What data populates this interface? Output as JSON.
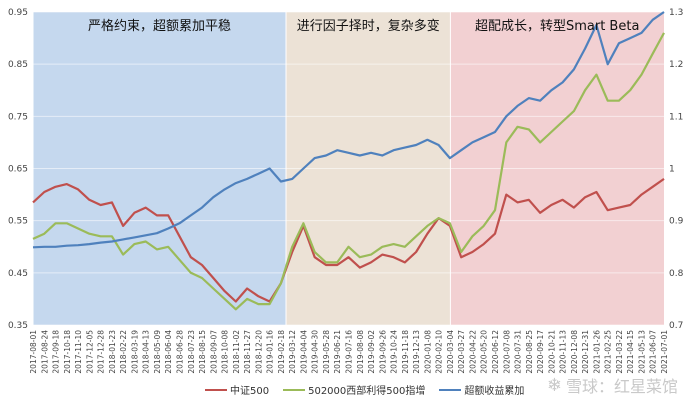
{
  "chart_data": {
    "type": "line",
    "regions": [
      {
        "label": "严格约束，超额累加平稳",
        "from": "2017-08-01",
        "to": "2019-02-28",
        "color": "#c5d8ee"
      },
      {
        "label": "进行因子择时，复杂多变",
        "from": "2019-02-28",
        "to": "2020-03-05",
        "color": "#ece2d6"
      },
      {
        "label": "超配成长，转型Smart Beta",
        "from": "2020-03-05",
        "to": "2021-07-01",
        "color": "#f2d0d2"
      }
    ],
    "x_ticks": [
      "2017-08-01",
      "2017-08-24",
      "2017-09-18",
      "2017-10-18",
      "2017-11-10",
      "2017-12-05",
      "2017-12-28",
      "2018-01-23",
      "2018-02-22",
      "2018-03-19",
      "2018-04-13",
      "2018-05-09",
      "2018-06-04",
      "2018-06-28",
      "2018-07-23",
      "2018-08-15",
      "2018-09-07",
      "2018-10-08",
      "2018-11-02",
      "2018-11-27",
      "2018-12-20",
      "2019-01-16",
      "2019-02-18",
      "2019-03-12",
      "2019-04-04",
      "2019-04-30",
      "2019-05-28",
      "2019-06-21",
      "2019-07-16",
      "2019-08-08",
      "2019-09-02",
      "2019-09-26",
      "2019-10-24",
      "2019-11-18",
      "2019-12-13",
      "2020-01-08",
      "2020-02-10",
      "2020-03-04",
      "2020-03-27",
      "2020-04-22",
      "2020-05-20",
      "2020-06-12",
      "2020-07-08",
      "2020-07-31",
      "2020-08-25",
      "2020-09-17",
      "2020-10-21",
      "2020-11-13",
      "2020-12-08",
      "2020-12-31",
      "2021-01-26",
      "2021-02-25",
      "2021-03-22",
      "2021-04-15",
      "2021-05-13",
      "2021-06-07",
      "2021-07-01"
    ],
    "y_left": {
      "ticks": [
        0.35,
        0.45,
        0.55,
        0.65,
        0.75,
        0.85,
        0.95
      ],
      "min": 0.35,
      "max": 0.95
    },
    "y_right": {
      "ticks": [
        0.7,
        0.8,
        0.9,
        1,
        1.1,
        1.2,
        1.3
      ],
      "min": 0.7,
      "max": 1.3
    },
    "series": [
      {
        "name": "中证500",
        "color": "#c0504d",
        "axis": "left",
        "values": [
          0.585,
          0.605,
          0.615,
          0.62,
          0.61,
          0.59,
          0.58,
          0.585,
          0.54,
          0.565,
          0.575,
          0.56,
          0.56,
          0.52,
          0.48,
          0.465,
          0.44,
          0.415,
          0.395,
          0.42,
          0.405,
          0.395,
          0.43,
          0.49,
          0.54,
          0.48,
          0.465,
          0.465,
          0.48,
          0.46,
          0.47,
          0.485,
          0.48,
          0.47,
          0.49,
          0.525,
          0.555,
          0.54,
          0.48,
          0.49,
          0.505,
          0.525,
          0.6,
          0.585,
          0.59,
          0.565,
          0.58,
          0.59,
          0.575,
          0.595,
          0.605,
          0.57,
          0.575,
          0.58,
          0.6,
          0.615,
          0.63
        ]
      },
      {
        "name": "502000西部利得500指增",
        "color": "#9bbb59",
        "axis": "left",
        "values": [
          0.515,
          0.525,
          0.545,
          0.545,
          0.535,
          0.525,
          0.52,
          0.52,
          0.485,
          0.505,
          0.51,
          0.495,
          0.5,
          0.475,
          0.45,
          0.44,
          0.42,
          0.4,
          0.38,
          0.4,
          0.39,
          0.39,
          0.43,
          0.5,
          0.545,
          0.49,
          0.47,
          0.47,
          0.5,
          0.48,
          0.485,
          0.5,
          0.505,
          0.5,
          0.52,
          0.54,
          0.555,
          0.545,
          0.49,
          0.52,
          0.54,
          0.57,
          0.7,
          0.73,
          0.725,
          0.7,
          0.72,
          0.74,
          0.76,
          0.8,
          0.83,
          0.78,
          0.78,
          0.8,
          0.83,
          0.87,
          0.91
        ]
      },
      {
        "name": "超额收益累加",
        "color": "#4f81bd",
        "axis": "right",
        "values": [
          0.849,
          0.85,
          0.85,
          0.852,
          0.853,
          0.855,
          0.858,
          0.86,
          0.864,
          0.868,
          0.872,
          0.876,
          0.885,
          0.895,
          0.91,
          0.925,
          0.945,
          0.96,
          0.972,
          0.98,
          0.99,
          1.0,
          0.975,
          0.98,
          1.0,
          1.02,
          1.025,
          1.035,
          1.03,
          1.025,
          1.03,
          1.025,
          1.035,
          1.04,
          1.045,
          1.055,
          1.045,
          1.02,
          1.035,
          1.05,
          1.06,
          1.07,
          1.1,
          1.12,
          1.135,
          1.13,
          1.15,
          1.165,
          1.19,
          1.23,
          1.275,
          1.2,
          1.24,
          1.25,
          1.26,
          1.285,
          1.3
        ]
      }
    ]
  },
  "legend": {
    "s1": "中证500",
    "s2": "502000西部利得500指增",
    "s3": "超额收益累加"
  },
  "watermark": {
    "text": "雪球：红星菜馆",
    "icon": "xueqiu-snowball-icon"
  }
}
